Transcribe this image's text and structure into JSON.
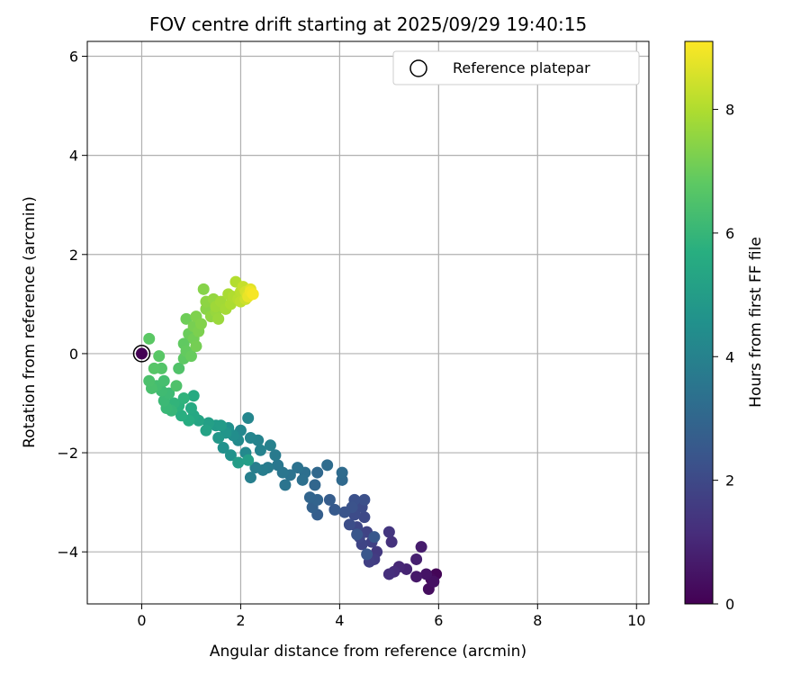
{
  "chart_data": {
    "type": "scatter",
    "title": "FOV centre drift starting at 2025/09/29 19:40:15",
    "xlabel": "Angular distance from reference (arcmin)",
    "ylabel": "Rotation from reference (arcmin)",
    "xlim": [
      -1.1,
      10.25
    ],
    "ylim": [
      -5.05,
      6.3
    ],
    "xticks": [
      0,
      2,
      4,
      6,
      8,
      10
    ],
    "xtick_labels": [
      "0",
      "2",
      "4",
      "6",
      "8",
      "10"
    ],
    "yticks": [
      -4,
      -2,
      0,
      2,
      4,
      6
    ],
    "ytick_labels": [
      "−4",
      "−2",
      "0",
      "2",
      "4",
      "6"
    ],
    "grid": true,
    "legend": {
      "position": "top-right",
      "entries": [
        "Reference platepar"
      ]
    },
    "reference_point": {
      "x": 0,
      "y": 0,
      "label": "Reference platepar"
    },
    "colorbar": {
      "label": "Hours from first FF file",
      "min": 0,
      "max": 9.1,
      "ticks": [
        0,
        2,
        4,
        6,
        8
      ],
      "tick_labels": [
        "0",
        "2",
        "4",
        "6",
        "8"
      ],
      "colormap": "viridis"
    },
    "points": [
      {
        "x": 5.95,
        "y": -4.45,
        "t": 0.1
      },
      {
        "x": 5.85,
        "y": -4.55,
        "t": 0.2
      },
      {
        "x": 5.8,
        "y": -4.75,
        "t": 0.3
      },
      {
        "x": 5.9,
        "y": -4.6,
        "t": 0.4
      },
      {
        "x": 5.75,
        "y": -4.45,
        "t": 0.5
      },
      {
        "x": 5.55,
        "y": -4.5,
        "t": 0.6
      },
      {
        "x": 5.65,
        "y": -3.9,
        "t": 0.7
      },
      {
        "x": 5.55,
        "y": -4.15,
        "t": 0.8
      },
      {
        "x": 5.35,
        "y": -4.35,
        "t": 0.9
      },
      {
        "x": 5.2,
        "y": -4.3,
        "t": 1.0
      },
      {
        "x": 5.1,
        "y": -4.4,
        "t": 1.1
      },
      {
        "x": 5.0,
        "y": -4.45,
        "t": 1.2
      },
      {
        "x": 5.05,
        "y": -3.8,
        "t": 1.3
      },
      {
        "x": 5.0,
        "y": -3.6,
        "t": 1.4
      },
      {
        "x": 4.75,
        "y": -4.0,
        "t": 1.5
      },
      {
        "x": 4.7,
        "y": -4.15,
        "t": 1.6
      },
      {
        "x": 4.6,
        "y": -4.2,
        "t": 1.7
      },
      {
        "x": 4.65,
        "y": -3.8,
        "t": 1.75
      },
      {
        "x": 4.55,
        "y": -3.6,
        "t": 1.8
      },
      {
        "x": 4.45,
        "y": -3.85,
        "t": 1.85
      },
      {
        "x": 4.4,
        "y": -3.7,
        "t": 1.9
      },
      {
        "x": 4.35,
        "y": -3.5,
        "t": 1.95
      },
      {
        "x": 4.5,
        "y": -3.3,
        "t": 2.0
      },
      {
        "x": 4.45,
        "y": -3.1,
        "t": 2.05
      },
      {
        "x": 4.3,
        "y": -3.25,
        "t": 2.1
      },
      {
        "x": 4.2,
        "y": -3.45,
        "t": 2.15
      },
      {
        "x": 4.5,
        "y": -2.95,
        "t": 2.2
      },
      {
        "x": 4.3,
        "y": -2.95,
        "t": 2.25
      },
      {
        "x": 4.25,
        "y": -3.1,
        "t": 2.3
      },
      {
        "x": 4.1,
        "y": -3.2,
        "t": 2.35
      },
      {
        "x": 4.35,
        "y": -3.65,
        "t": 2.4
      },
      {
        "x": 4.55,
        "y": -4.05,
        "t": 2.45
      },
      {
        "x": 4.7,
        "y": -3.7,
        "t": 2.5
      },
      {
        "x": 3.9,
        "y": -3.15,
        "t": 2.55
      },
      {
        "x": 3.8,
        "y": -2.95,
        "t": 2.65
      },
      {
        "x": 3.55,
        "y": -3.25,
        "t": 2.7
      },
      {
        "x": 3.45,
        "y": -3.1,
        "t": 2.8
      },
      {
        "x": 3.55,
        "y": -2.95,
        "t": 2.9
      },
      {
        "x": 3.4,
        "y": -2.9,
        "t": 2.95
      },
      {
        "x": 3.5,
        "y": -2.65,
        "t": 3.0
      },
      {
        "x": 3.55,
        "y": -2.4,
        "t": 3.05
      },
      {
        "x": 4.05,
        "y": -2.55,
        "t": 3.1
      },
      {
        "x": 4.05,
        "y": -2.4,
        "t": 3.15
      },
      {
        "x": 3.75,
        "y": -2.25,
        "t": 3.2
      },
      {
        "x": 3.3,
        "y": -2.4,
        "t": 3.3
      },
      {
        "x": 3.25,
        "y": -2.55,
        "t": 3.35
      },
      {
        "x": 3.15,
        "y": -2.3,
        "t": 3.4
      },
      {
        "x": 3.0,
        "y": -2.45,
        "t": 3.45
      },
      {
        "x": 2.9,
        "y": -2.65,
        "t": 3.5
      },
      {
        "x": 2.85,
        "y": -2.4,
        "t": 3.55
      },
      {
        "x": 2.75,
        "y": -2.25,
        "t": 3.6
      },
      {
        "x": 2.7,
        "y": -2.05,
        "t": 3.7
      },
      {
        "x": 2.55,
        "y": -2.3,
        "t": 3.75
      },
      {
        "x": 2.45,
        "y": -2.35,
        "t": 3.8
      },
      {
        "x": 2.3,
        "y": -2.3,
        "t": 3.85
      },
      {
        "x": 2.2,
        "y": -2.5,
        "t": 3.9
      },
      {
        "x": 2.6,
        "y": -1.85,
        "t": 3.95
      },
      {
        "x": 2.4,
        "y": -1.95,
        "t": 4.0
      },
      {
        "x": 2.35,
        "y": -1.75,
        "t": 4.05
      },
      {
        "x": 2.2,
        "y": -1.7,
        "t": 4.1
      },
      {
        "x": 2.15,
        "y": -1.3,
        "t": 4.15
      },
      {
        "x": 2.0,
        "y": -1.55,
        "t": 4.2
      },
      {
        "x": 2.1,
        "y": -2.0,
        "t": 4.25
      },
      {
        "x": 1.95,
        "y": -1.75,
        "t": 4.3
      },
      {
        "x": 1.85,
        "y": -1.65,
        "t": 4.4
      },
      {
        "x": 1.75,
        "y": -1.5,
        "t": 4.5
      },
      {
        "x": 1.65,
        "y": -1.9,
        "t": 4.55
      },
      {
        "x": 1.8,
        "y": -2.05,
        "t": 4.6
      },
      {
        "x": 1.7,
        "y": -1.6,
        "t": 4.7
      },
      {
        "x": 1.55,
        "y": -1.7,
        "t": 4.8
      },
      {
        "x": 1.5,
        "y": -1.45,
        "t": 4.9
      },
      {
        "x": 1.6,
        "y": -1.45,
        "t": 4.95
      },
      {
        "x": 1.95,
        "y": -2.2,
        "t": 5.0
      },
      {
        "x": 2.15,
        "y": -2.15,
        "t": 5.05
      },
      {
        "x": 1.35,
        "y": -1.4,
        "t": 5.1
      },
      {
        "x": 1.3,
        "y": -1.55,
        "t": 5.2
      },
      {
        "x": 1.15,
        "y": -1.35,
        "t": 5.3
      },
      {
        "x": 1.05,
        "y": -1.25,
        "t": 5.4
      },
      {
        "x": 1.0,
        "y": -1.1,
        "t": 5.5
      },
      {
        "x": 1.05,
        "y": -0.85,
        "t": 5.55
      },
      {
        "x": 0.95,
        "y": -1.35,
        "t": 5.6
      },
      {
        "x": 0.8,
        "y": -1.25,
        "t": 5.7
      },
      {
        "x": 0.75,
        "y": -1.05,
        "t": 5.8
      },
      {
        "x": 0.85,
        "y": -0.9,
        "t": 5.85
      },
      {
        "x": 0.65,
        "y": -1.0,
        "t": 5.9
      },
      {
        "x": 0.6,
        "y": -1.15,
        "t": 6.0
      },
      {
        "x": 0.5,
        "y": -1.1,
        "t": 6.05
      },
      {
        "x": 0.45,
        "y": -0.95,
        "t": 6.1
      },
      {
        "x": 0.55,
        "y": -0.8,
        "t": 6.15
      },
      {
        "x": 0.4,
        "y": -0.75,
        "t": 6.2
      },
      {
        "x": 0.3,
        "y": -0.65,
        "t": 6.3
      },
      {
        "x": 0.45,
        "y": -0.55,
        "t": 6.35
      },
      {
        "x": 0.2,
        "y": -0.7,
        "t": 6.4
      },
      {
        "x": 0.15,
        "y": -0.55,
        "t": 6.45
      },
      {
        "x": 0.7,
        "y": -0.65,
        "t": 6.5
      },
      {
        "x": 0.75,
        "y": -0.3,
        "t": 6.55
      },
      {
        "x": 0.4,
        "y": -0.3,
        "t": 6.6
      },
      {
        "x": 0.25,
        "y": -0.3,
        "t": 6.65
      },
      {
        "x": 0.35,
        "y": -0.05,
        "t": 6.7
      },
      {
        "x": 0.15,
        "y": 0.3,
        "t": 6.75
      },
      {
        "x": 0.85,
        "y": -0.1,
        "t": 6.8
      },
      {
        "x": 0.85,
        "y": 0.2,
        "t": 6.85
      },
      {
        "x": 0.9,
        "y": 0.05,
        "t": 6.9
      },
      {
        "x": 1.0,
        "y": -0.05,
        "t": 6.95
      },
      {
        "x": 0.95,
        "y": 0.4,
        "t": 7.0
      },
      {
        "x": 0.9,
        "y": 0.7,
        "t": 7.05
      },
      {
        "x": 1.05,
        "y": 0.3,
        "t": 7.1
      },
      {
        "x": 1.1,
        "y": 0.15,
        "t": 7.15
      },
      {
        "x": 1.05,
        "y": 0.55,
        "t": 7.2
      },
      {
        "x": 1.15,
        "y": 0.45,
        "t": 7.25
      },
      {
        "x": 1.1,
        "y": 0.75,
        "t": 7.3
      },
      {
        "x": 1.2,
        "y": 0.6,
        "t": 7.35
      },
      {
        "x": 1.25,
        "y": 1.3,
        "t": 7.4
      },
      {
        "x": 1.3,
        "y": 0.9,
        "t": 7.45
      },
      {
        "x": 1.3,
        "y": 1.05,
        "t": 7.5
      },
      {
        "x": 1.4,
        "y": 0.75,
        "t": 7.55
      },
      {
        "x": 1.45,
        "y": 1.1,
        "t": 7.6
      },
      {
        "x": 1.5,
        "y": 0.85,
        "t": 7.65
      },
      {
        "x": 1.55,
        "y": 0.7,
        "t": 7.7
      },
      {
        "x": 1.5,
        "y": 0.95,
        "t": 7.75
      },
      {
        "x": 1.6,
        "y": 1.05,
        "t": 7.8
      },
      {
        "x": 1.7,
        "y": 0.9,
        "t": 7.85
      },
      {
        "x": 1.75,
        "y": 1.2,
        "t": 7.9
      },
      {
        "x": 1.8,
        "y": 1.0,
        "t": 7.95
      },
      {
        "x": 1.85,
        "y": 1.15,
        "t": 8.0
      },
      {
        "x": 1.9,
        "y": 1.45,
        "t": 8.05
      },
      {
        "x": 1.95,
        "y": 1.1,
        "t": 8.1
      },
      {
        "x": 2.0,
        "y": 1.25,
        "t": 8.15
      },
      {
        "x": 2.0,
        "y": 1.05,
        "t": 8.2
      },
      {
        "x": 2.05,
        "y": 1.35,
        "t": 8.3
      },
      {
        "x": 2.1,
        "y": 1.1,
        "t": 8.4
      },
      {
        "x": 2.1,
        "y": 1.25,
        "t": 8.5
      },
      {
        "x": 2.15,
        "y": 1.2,
        "t": 8.6
      },
      {
        "x": 2.2,
        "y": 1.3,
        "t": 8.7
      },
      {
        "x": 2.15,
        "y": 1.15,
        "t": 8.8
      },
      {
        "x": 2.2,
        "y": 1.25,
        "t": 8.9
      },
      {
        "x": 2.25,
        "y": 1.2,
        "t": 9.0
      },
      {
        "x": 0.0,
        "y": 0.0,
        "t": 0.0
      }
    ]
  }
}
